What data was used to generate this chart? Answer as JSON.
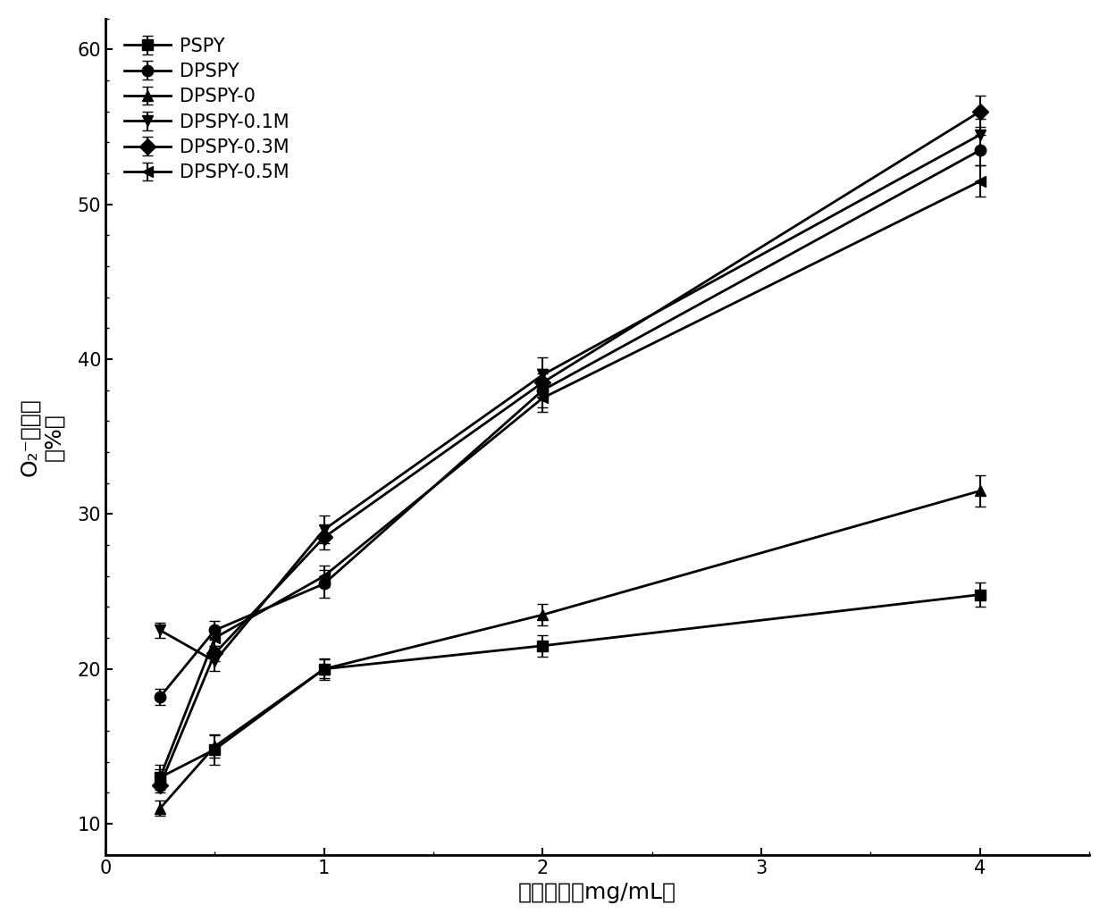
{
  "x": [
    0.25,
    0.5,
    1.0,
    2.0,
    4.0
  ],
  "series": {
    "PSPY": {
      "y": [
        13.0,
        14.8,
        20.0,
        21.5,
        24.8
      ],
      "yerr": [
        0.8,
        1.0,
        0.7,
        0.7,
        0.8
      ],
      "marker": "s",
      "label": "PSPY"
    },
    "DPSPY": {
      "y": [
        18.2,
        22.5,
        25.5,
        38.0,
        53.5
      ],
      "yerr": [
        0.5,
        0.6,
        0.9,
        1.1,
        1.0
      ],
      "marker": "o",
      "label": "DPSPY"
    },
    "DPSPY-0": {
      "y": [
        11.0,
        15.0,
        20.0,
        23.5,
        31.5
      ],
      "yerr": [
        0.5,
        0.7,
        0.6,
        0.7,
        1.0
      ],
      "marker": "^",
      "label": "DPSPY-0"
    },
    "DPSPY-0.1M": {
      "y": [
        22.5,
        20.5,
        29.0,
        39.0,
        54.5
      ],
      "yerr": [
        0.5,
        0.6,
        0.9,
        1.1,
        1.0
      ],
      "marker": "v",
      "label": "DPSPY-0.1M"
    },
    "DPSPY-0.3M": {
      "y": [
        12.5,
        21.0,
        28.5,
        38.5,
        56.0
      ],
      "yerr": [
        0.5,
        0.5,
        0.8,
        0.9,
        1.0
      ],
      "marker": "D",
      "label": "DPSPY-0.3M"
    },
    "DPSPY-0.5M": {
      "y": [
        13.0,
        22.0,
        26.0,
        37.5,
        51.5
      ],
      "yerr": [
        0.5,
        0.5,
        0.7,
        0.9,
        1.0
      ],
      "marker": "<",
      "label": "DPSPY-0.5M"
    }
  },
  "xlabel": "样品浓度（mg/mL）",
  "ylabel_line1": "O₂⁻清除率",
  "ylabel_line2": "（%）",
  "xlim": [
    0,
    4.5
  ],
  "ylim": [
    8,
    62
  ],
  "xticks": [
    0,
    1,
    2,
    3,
    4
  ],
  "yticks": [
    10,
    20,
    30,
    40,
    50,
    60
  ],
  "series_order": [
    "PSPY",
    "DPSPY",
    "DPSPY-0",
    "DPSPY-0.1M",
    "DPSPY-0.3M",
    "DPSPY-0.5M"
  ],
  "line_color": "#000000",
  "line_width": 2.0,
  "marker_size": 9,
  "capsize": 4,
  "elinewidth": 1.5,
  "legend_fontsize": 15,
  "axis_label_fontsize": 18,
  "tick_fontsize": 15,
  "minor_tick_count": 4
}
